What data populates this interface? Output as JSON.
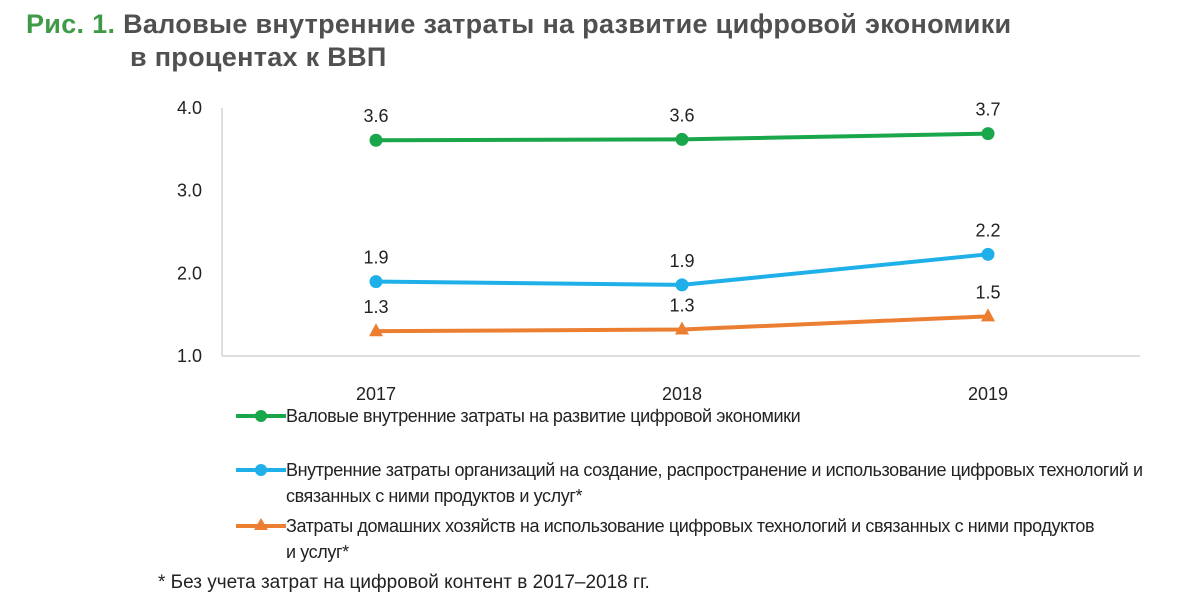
{
  "title": {
    "prefix": "Рис. 1.",
    "line1": "Валовые внутренние затраты на развитие цифровой экономики",
    "line2": "в процентах к ВВП"
  },
  "chart_data": {
    "type": "line",
    "title": "Валовые внутренние затраты на развитие цифровой экономики в процентах к ВВП",
    "categories": [
      "2017",
      "2018",
      "2019"
    ],
    "ylim": [
      1.0,
      4.0
    ],
    "yticks": [
      "1.0",
      "2.0",
      "3.0",
      "4.0"
    ],
    "grid": false,
    "legend": "bottom",
    "series": [
      {
        "name": "Валовые внутренние затраты на развитие цифровой экономики",
        "color": "#1aa64b",
        "marker": "circle",
        "values": [
          3.61,
          3.62,
          3.69
        ],
        "labels": [
          "3.6",
          "3.6",
          "3.7"
        ]
      },
      {
        "name": "Внутренние затраты организаций на создание, распространение  и использование цифровых технологий и связанных с ними продуктов и услуг*",
        "color": "#1fb0ea",
        "marker": "circle",
        "values": [
          1.9,
          1.86,
          2.23
        ],
        "labels": [
          "1.9",
          "1.9",
          "2.2"
        ]
      },
      {
        "name": "Затраты домашних хозяйств на использование цифровых технологий  и связанных с ними продуктов и услуг*",
        "color": "#ec7e32",
        "marker": "triangle",
        "values": [
          1.3,
          1.32,
          1.48
        ],
        "labels": [
          "1.3",
          "1.3",
          "1.5"
        ]
      }
    ]
  },
  "footnote": "* Без учета затрат на цифровой контент в 2017–2018 гг."
}
